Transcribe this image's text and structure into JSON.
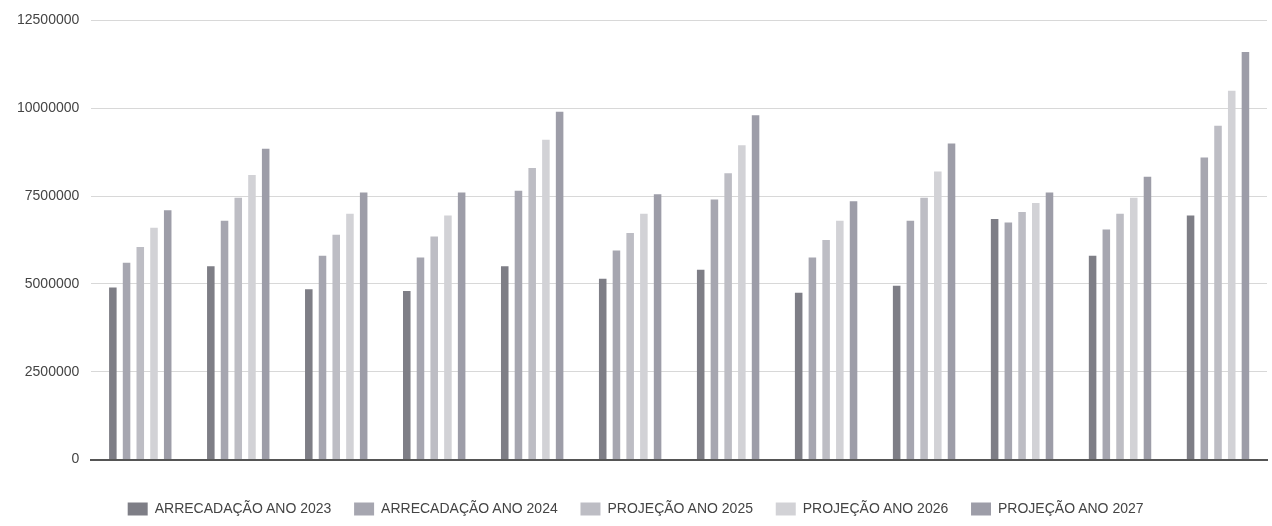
{
  "chart_data": {
    "type": "bar",
    "categories": [
      null,
      null,
      null,
      null,
      null,
      null,
      null,
      null,
      null,
      null,
      null,
      null
    ],
    "series": [
      {
        "name": "ARRECADAÇÃO ANO 2023",
        "color": "#7e7e86",
        "values": [
          4900000,
          5500000,
          4850000,
          4800000,
          5500000,
          5150000,
          5400000,
          4750000,
          4950000,
          6850000,
          5800000,
          6950000
        ]
      },
      {
        "name": "ARRECADAÇÃO ANO 2024",
        "color": "#a6a6b0",
        "values": [
          5600000,
          6800000,
          5800000,
          5750000,
          7650000,
          5950000,
          7400000,
          5750000,
          6800000,
          6750000,
          6550000,
          8600000
        ]
      },
      {
        "name": "PROJEÇÃO ANO 2025",
        "color": "#bdbdc4",
        "values": [
          6050000,
          7450000,
          6400000,
          6350000,
          8300000,
          6450000,
          8150000,
          6250000,
          7450000,
          7050000,
          7000000,
          9500000
        ]
      },
      {
        "name": "PROJEÇÃO ANO 2026",
        "color": "#d2d2d6",
        "values": [
          6600000,
          8100000,
          7000000,
          6950000,
          9100000,
          7000000,
          8950000,
          6800000,
          8200000,
          7300000,
          7450000,
          10500000
        ]
      },
      {
        "name": "PROJEÇÃO ANO 2027",
        "color": "#9d9da8",
        "values": [
          7100000,
          8850000,
          7600000,
          7600000,
          9900000,
          7550000,
          9800000,
          7350000,
          9000000,
          7600000,
          8050000,
          11600000
        ]
      }
    ],
    "ylim": [
      0,
      12500000
    ],
    "yticks": [
      0,
      2500000,
      5000000,
      7500000,
      10000000,
      12500000
    ],
    "grid": "y",
    "legend": "bottom"
  }
}
